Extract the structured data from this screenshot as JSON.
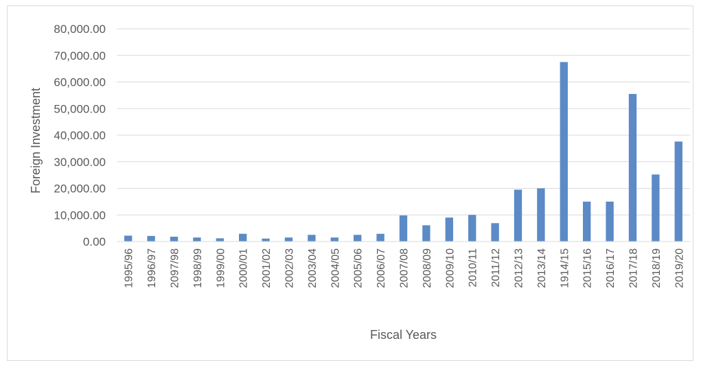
{
  "chart_data": {
    "type": "bar",
    "title": "",
    "xlabel": "Fiscal Years",
    "ylabel": "Foreign Investment",
    "ylim": [
      0,
      80000
    ],
    "yticks": [
      "0.00",
      "10,000.00",
      "20,000.00",
      "30,000.00",
      "40,000.00",
      "50,000.00",
      "60,000.00",
      "70,000.00",
      "80,000.00"
    ],
    "grid": true,
    "legend": "none",
    "bar_color": "#5B8AC6",
    "categories": [
      "1995/96",
      "1996/97",
      "2097/98",
      "1998/99",
      "1999/00",
      "2000/01",
      "2001/02",
      "2002/03",
      "2003/04",
      "2004/05",
      "2005/06",
      "2006/07",
      "2007/08",
      "2008/09",
      "2009/10",
      "2010/11",
      "2011/12",
      "2012/13",
      "2013/14",
      "1914/15",
      "2015/16",
      "2016/17",
      "2017/18",
      "2018/19",
      "2019/20"
    ],
    "values": [
      2200,
      2100,
      1800,
      1500,
      1200,
      2900,
      1100,
      1500,
      2500,
      1500,
      2500,
      2900,
      9800,
      6100,
      9000,
      10000,
      6900,
      19500,
      20000,
      67500,
      15000,
      15000,
      55500,
      25200,
      37600
    ]
  }
}
